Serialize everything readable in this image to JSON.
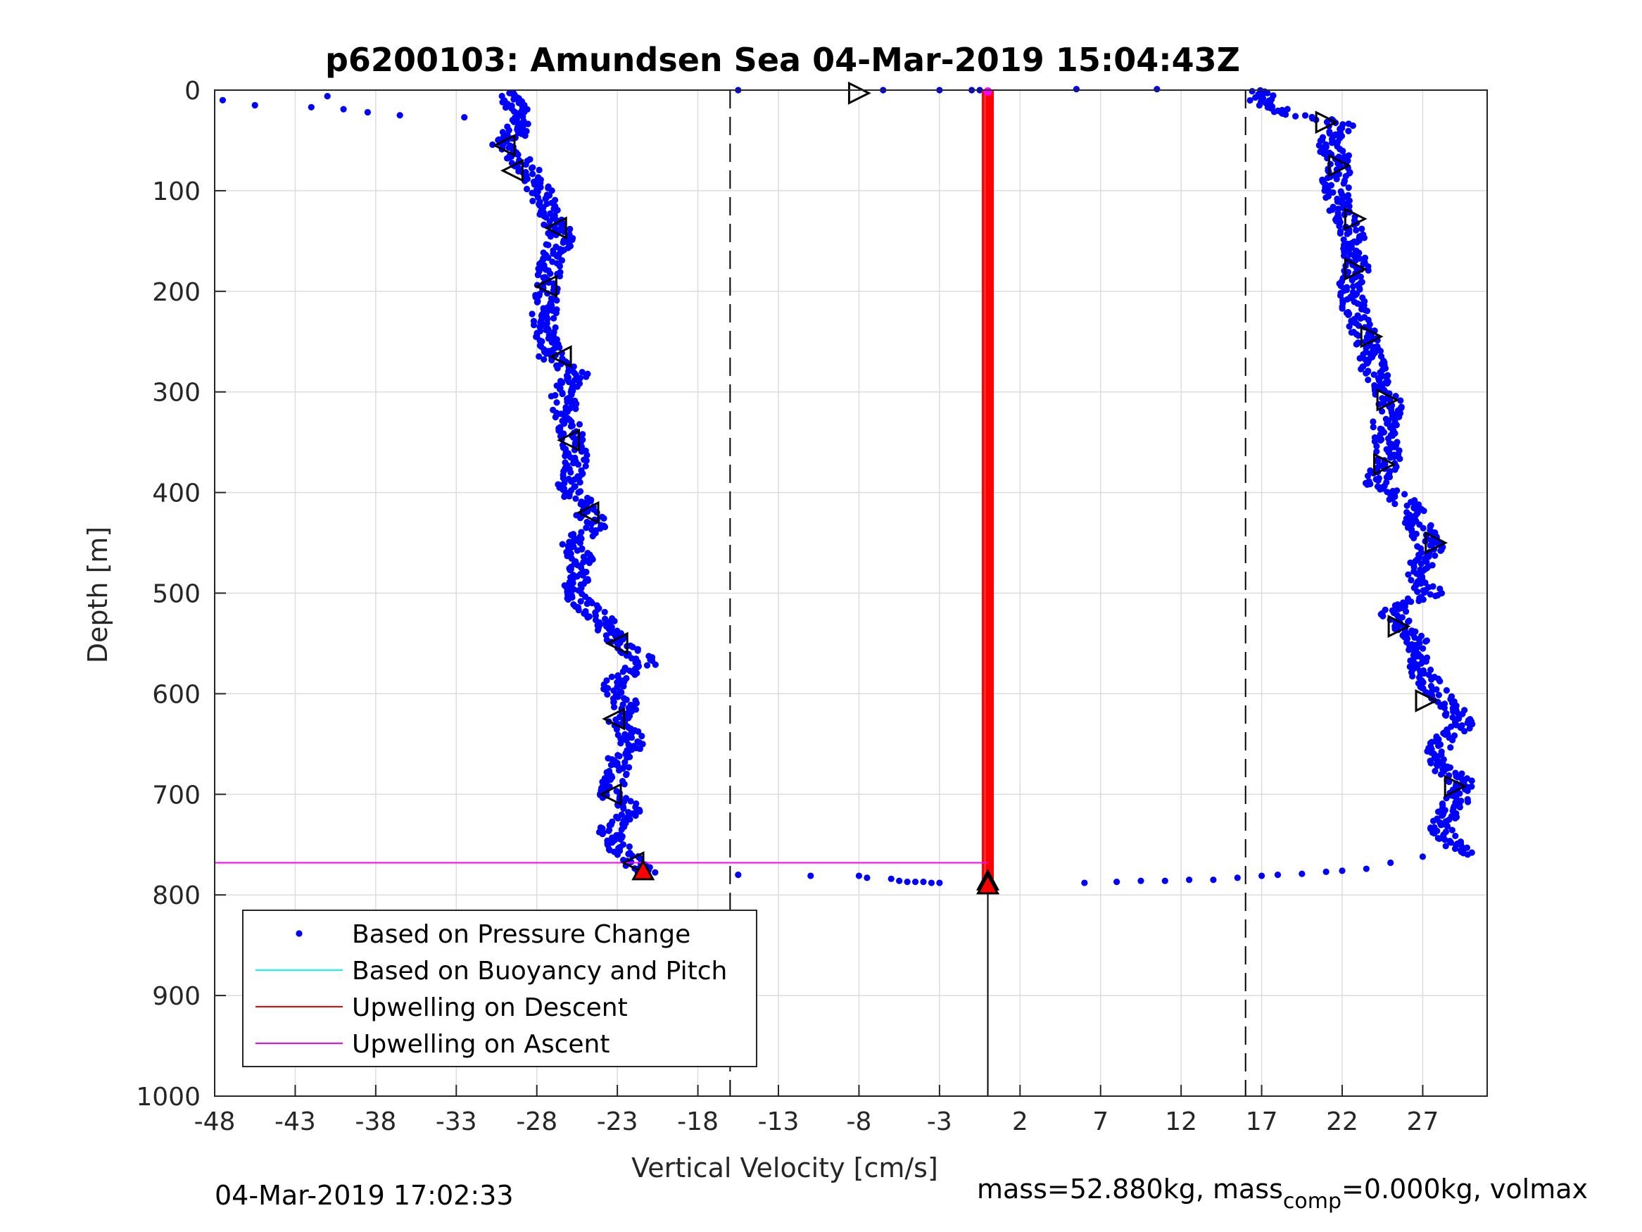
{
  "title": "p6200103: Amundsen Sea 04-Mar-2019 15:04:43Z",
  "footer": {
    "timestamp": "04-Mar-2019 17:02:33",
    "mass_prefix": "mass=52.880kg, mass",
    "mass_sub": "comp",
    "mass_suffix": "=0.000kg, volmax"
  },
  "chart_data": {
    "type": "scatter",
    "title": "p6200103: Amundsen Sea 04-Mar-2019 15:04:43Z",
    "xlabel": "Vertical Velocity [cm/s]",
    "ylabel": "Depth [m]",
    "xlim": [
      -48,
      31
    ],
    "ylim": [
      0,
      1000
    ],
    "y_reversed": true,
    "grid": true,
    "xticks": [
      -48,
      -43,
      -38,
      -33,
      -28,
      -23,
      -18,
      -13,
      -8,
      -3,
      2,
      7,
      12,
      17,
      22,
      27
    ],
    "yticks": [
      0,
      100,
      200,
      300,
      400,
      500,
      600,
      700,
      800,
      900,
      1000
    ],
    "reference_lines": {
      "dashed_x": [
        -16,
        16
      ],
      "solid_x": [
        0
      ]
    },
    "legend": {
      "location": "bottom-left",
      "entries": [
        {
          "label": "Based on Pressure Change",
          "color": "#0000ff",
          "marker": "dot"
        },
        {
          "label": "Based on Buoyancy and Pitch",
          "color": "#00ffff",
          "marker": "line"
        },
        {
          "label": "Upwelling on Descent",
          "color": "#ff0000",
          "marker": "line"
        },
        {
          "label": "Upwelling on Ascent",
          "color": "#ff00ff",
          "marker": "line"
        }
      ]
    },
    "descent_profile": [
      [
        -29.7,
        3
      ],
      [
        -29,
        35
      ],
      [
        -30,
        55
      ],
      [
        -28.5,
        80
      ],
      [
        -27.5,
        110
      ],
      [
        -26.5,
        145
      ],
      [
        -27,
        170
      ],
      [
        -27.5,
        200
      ],
      [
        -27.5,
        240
      ],
      [
        -27,
        270
      ],
      [
        -25.5,
        283
      ],
      [
        -26.5,
        300
      ],
      [
        -26,
        330
      ],
      [
        -25.5,
        360
      ],
      [
        -26,
        390
      ],
      [
        -25,
        420
      ],
      [
        -24,
        433
      ],
      [
        -26,
        450
      ],
      [
        -25,
        470
      ],
      [
        -26,
        500
      ],
      [
        -24,
        525
      ],
      [
        -23,
        550
      ],
      [
        -21,
        568
      ],
      [
        -23.5,
        590
      ],
      [
        -22.5,
        610
      ],
      [
        -23,
        630
      ],
      [
        -22,
        645
      ],
      [
        -23,
        670
      ],
      [
        -23.5,
        700
      ],
      [
        -22,
        715
      ],
      [
        -23.5,
        735
      ],
      [
        -23,
        750
      ],
      [
        -22,
        770
      ],
      [
        -21,
        778
      ]
    ],
    "surface_points": [
      [
        -47.5,
        10
      ],
      [
        -45.5,
        15
      ],
      [
        -42,
        17
      ],
      [
        -41,
        6
      ],
      [
        -40,
        19
      ],
      [
        -38.5,
        22
      ],
      [
        -36.5,
        25
      ],
      [
        -32.5,
        27
      ],
      [
        -29.7,
        3
      ],
      [
        -15.5,
        0
      ],
      [
        -6.5,
        0
      ],
      [
        -3,
        0
      ],
      [
        -1,
        0
      ],
      [
        -0.5,
        0
      ],
      [
        5.5,
        -1
      ],
      [
        10.5,
        -1
      ]
    ],
    "bottom_points": [
      [
        -15.5,
        780
      ],
      [
        -11,
        781
      ],
      [
        -8,
        781
      ],
      [
        -7.5,
        783
      ],
      [
        -6,
        784
      ],
      [
        -5.5,
        786
      ],
      [
        -5,
        787
      ],
      [
        -4.5,
        787
      ],
      [
        -4,
        787
      ],
      [
        -3.5,
        788
      ],
      [
        -3,
        788
      ],
      [
        6,
        788
      ],
      [
        8,
        787
      ],
      [
        9.5,
        786
      ],
      [
        11,
        786
      ],
      [
        12.5,
        785
      ],
      [
        14,
        785
      ],
      [
        15.5,
        783
      ],
      [
        17,
        781
      ],
      [
        18,
        780
      ],
      [
        19.5,
        779
      ],
      [
        21,
        777
      ],
      [
        22,
        776
      ],
      [
        23.5,
        774
      ],
      [
        25,
        768
      ],
      [
        27,
        762
      ]
    ],
    "ascent_profile": [
      [
        17,
        0
      ],
      [
        17,
        10
      ],
      [
        17.5,
        15
      ],
      [
        18.5,
        22
      ],
      [
        20.5,
        28
      ],
      [
        22,
        35
      ],
      [
        21,
        55
      ],
      [
        22,
        70
      ],
      [
        21.5,
        90
      ],
      [
        22,
        120
      ],
      [
        22.5,
        140
      ],
      [
        23,
        170
      ],
      [
        22.5,
        200
      ],
      [
        23,
        230
      ],
      [
        23.5,
        250
      ],
      [
        24,
        280
      ],
      [
        25,
        310
      ],
      [
        24.5,
        340
      ],
      [
        25,
        365
      ],
      [
        24,
        390
      ],
      [
        26,
        410
      ],
      [
        27,
        440
      ],
      [
        27.5,
        455
      ],
      [
        26.5,
        480
      ],
      [
        27.5,
        500
      ],
      [
        25,
        520
      ],
      [
        26.5,
        545
      ],
      [
        26.5,
        570
      ],
      [
        27.5,
        590
      ],
      [
        28.5,
        610
      ],
      [
        29.5,
        630
      ],
      [
        28,
        650
      ],
      [
        28,
        670
      ],
      [
        29.5,
        690
      ],
      [
        29,
        710
      ],
      [
        28,
        730
      ],
      [
        28.5,
        745
      ],
      [
        29.5,
        760
      ]
    ],
    "buoyancy_pitch_estimate": {
      "x": 0,
      "depth_range": [
        0,
        790
      ]
    },
    "upwelling_ascent_lines": [
      {
        "depth": 0,
        "x_range": [
          -48,
          0
        ]
      },
      {
        "depth": 768,
        "x_range": [
          -48,
          0
        ]
      }
    ],
    "descent_triangles": [
      [
        -30,
        55
      ],
      [
        -29.5,
        80
      ],
      [
        -26.8,
        137
      ],
      [
        -27.4,
        195
      ],
      [
        -26.5,
        265
      ],
      [
        -26,
        348
      ],
      [
        -24.8,
        420
      ],
      [
        -23,
        550
      ],
      [
        -23.2,
        625
      ],
      [
        -23.4,
        700
      ],
      [
        -22,
        768
      ]
    ],
    "ascent_triangles": [
      [
        -8,
        3
      ],
      [
        21,
        32
      ],
      [
        21.8,
        75
      ],
      [
        22.8,
        128
      ],
      [
        22.8,
        178
      ],
      [
        23.8,
        245
      ],
      [
        24.8,
        308
      ],
      [
        24.6,
        372
      ],
      [
        27.8,
        450
      ],
      [
        25.5,
        533
      ],
      [
        27.2,
        607
      ],
      [
        29,
        692
      ]
    ],
    "end_markers": [
      [
        -21.4,
        776
      ],
      [
        0,
        786
      ],
      [
        0,
        790
      ]
    ]
  }
}
